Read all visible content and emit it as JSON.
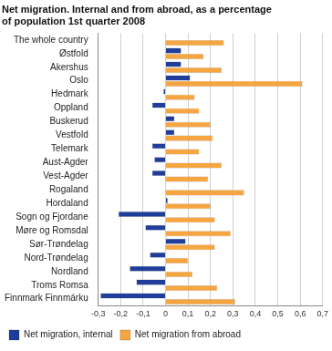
{
  "chart_data": {
    "type": "bar",
    "orientation": "horizontal",
    "title": [
      "Net migration. Internal and from abroad, as a percentage",
      "of population 1st quarter 2008"
    ],
    "categories": [
      "The whole country",
      "Østfold",
      "Akershus",
      "Oslo",
      "Hedmark",
      "Oppland",
      "Buskerud",
      "Vestfold",
      "Telemark",
      "Aust-Agder",
      "Vest-Agder",
      "Rogaland",
      "Hordaland",
      "Sogn og Fjordane",
      "Møre og Romsdal",
      "Sør-Trøndelag",
      "Nord-Trøndelag",
      "Nordland",
      "Troms Romsa",
      "Finnmark Finnmárku"
    ],
    "series": [
      {
        "name": "Net migration, internal",
        "color": "#1f3d99",
        "values": [
          0,
          0.07,
          0.07,
          0.11,
          -0.01,
          -0.06,
          0.04,
          0.04,
          -0.06,
          -0.05,
          -0.06,
          0,
          0.01,
          -0.21,
          -0.09,
          0.09,
          -0.07,
          -0.16,
          -0.13,
          -0.29
        ]
      },
      {
        "name": "Net migration from abroad",
        "color": "#f7a541",
        "values": [
          0.26,
          0.17,
          0.25,
          0.61,
          0.13,
          0.15,
          0.2,
          0.21,
          0.15,
          0.25,
          0.19,
          0.35,
          0.2,
          0.22,
          0.29,
          0.22,
          0.1,
          0.12,
          0.23,
          0.31
        ]
      }
    ],
    "xlim": [
      -0.3,
      0.7
    ],
    "xticks": [
      {
        "value": -0.3,
        "label": "-0,3"
      },
      {
        "value": -0.2,
        "label": "-0,2"
      },
      {
        "value": -0.1,
        "label": "-0,1"
      },
      0,
      {
        "value": 0.1,
        "label": "0,1"
      },
      {
        "value": 0.2,
        "label": "0,2"
      },
      {
        "value": 0.3,
        "label": "0,3"
      },
      {
        "value": 0.4,
        "label": "0,4"
      },
      {
        "value": 0.5,
        "label": "0,5"
      },
      {
        "value": 0.6,
        "label": "0,6"
      },
      {
        "value": 0.7,
        "label": "0,7"
      }
    ],
    "grid": true,
    "legend": "bottom"
  }
}
